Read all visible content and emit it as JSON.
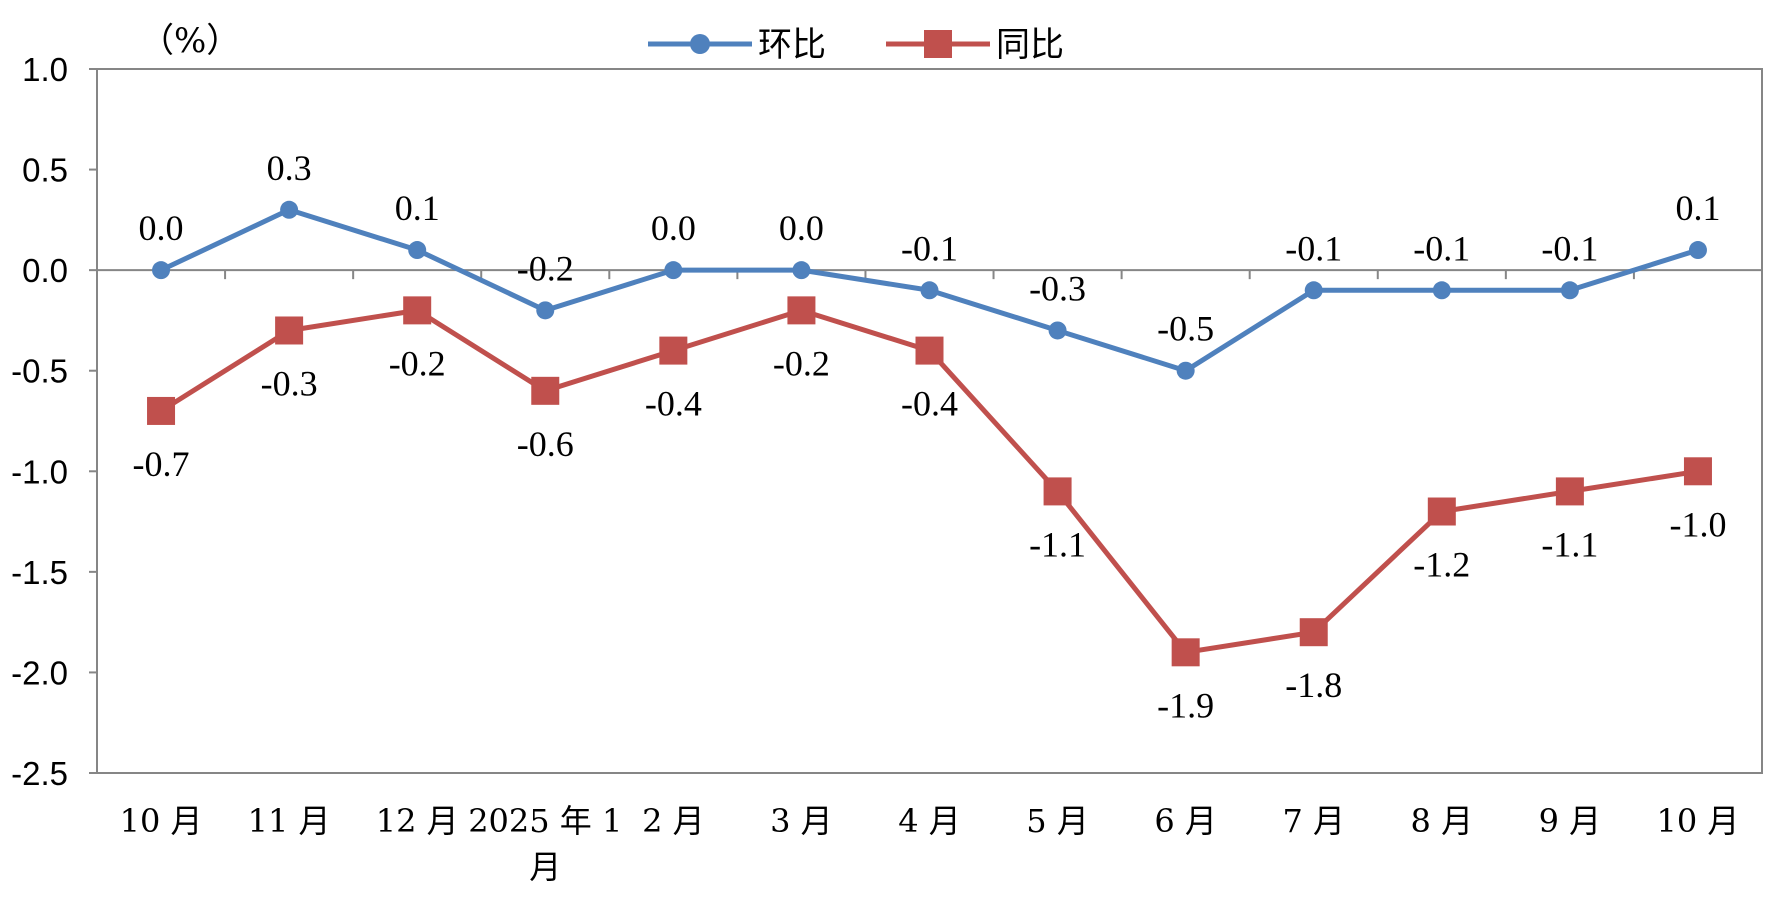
{
  "chart_data": {
    "type": "line",
    "unit_label": "（%）",
    "categories": [
      "10月",
      "11月",
      "12月",
      "2025年1月",
      "2月",
      "3月",
      "4月",
      "5月",
      "6月",
      "7月",
      "8月",
      "9月",
      "10月"
    ],
    "category_lines": [
      [
        "10 月"
      ],
      [
        "11 月"
      ],
      [
        "12 月"
      ],
      [
        "2025 年 1",
        "月"
      ],
      [
        "2 月"
      ],
      [
        "3 月"
      ],
      [
        "4 月"
      ],
      [
        "5 月"
      ],
      [
        "6 月"
      ],
      [
        "7 月"
      ],
      [
        "8 月"
      ],
      [
        "9 月"
      ],
      [
        "10 月"
      ]
    ],
    "ylim": [
      -2.5,
      1.0
    ],
    "yticks": [
      "1.0",
      "0.5",
      "0.0",
      "-0.5",
      "-1.0",
      "-1.5",
      "-2.0",
      "-2.5"
    ],
    "legend_position": "top-center",
    "series": [
      {
        "name": "环比",
        "color": "#4F81BD",
        "marker": "circle",
        "values": [
          0.0,
          0.3,
          0.1,
          -0.2,
          0.0,
          0.0,
          -0.1,
          -0.3,
          -0.5,
          -0.1,
          -0.1,
          -0.1,
          0.1
        ],
        "labels": [
          "0.0",
          "0.3",
          "0.1",
          "-0.2",
          "0.0",
          "0.0",
          "-0.1",
          "-0.3",
          "-0.5",
          "-0.1",
          "-0.1",
          "-0.1",
          "0.1"
        ]
      },
      {
        "name": "同比",
        "color": "#C0504D",
        "marker": "square",
        "values": [
          -0.7,
          -0.3,
          -0.2,
          -0.6,
          -0.4,
          -0.2,
          -0.4,
          -1.1,
          -1.9,
          -1.8,
          -1.2,
          -1.1,
          -1.0
        ],
        "labels": [
          "-0.7",
          "-0.3",
          "-0.2",
          "-0.6",
          "-0.4",
          "-0.2",
          "-0.4",
          "-1.1",
          "-1.9",
          "-1.8",
          "-1.2",
          "-1.1",
          "-1.0"
        ]
      }
    ]
  }
}
